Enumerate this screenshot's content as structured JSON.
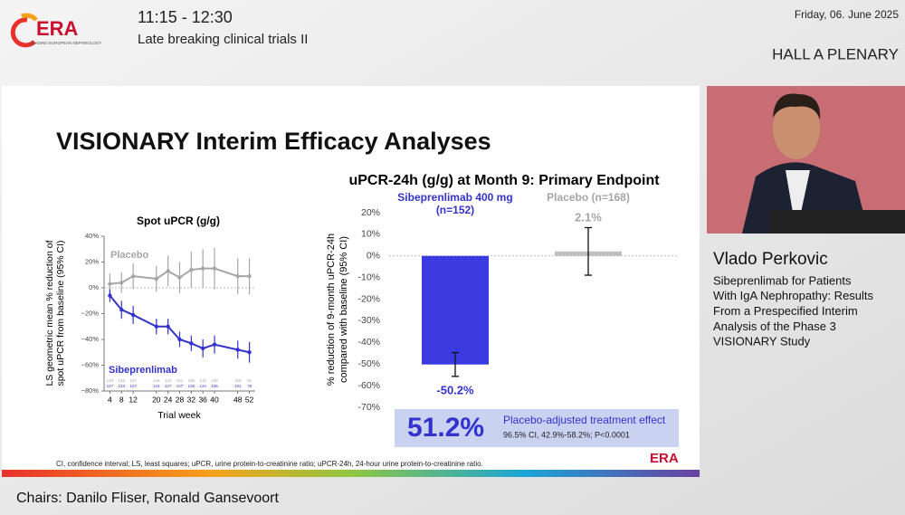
{
  "header": {
    "logo": "ERA",
    "logo_tagline": "LEADING EUROPEAN NEPHROLOGY",
    "time": "11:15 - 12:30",
    "session": "Late breaking clinical trials II",
    "date": "Friday, 06. June 2025",
    "hall": "HALL A PLENARY"
  },
  "speaker": {
    "name": "Vlado Perkovic",
    "talk_title_lines": [
      "Sibeprenlimab for Patients",
      "With IgA Nephropathy: Results",
      "From a Prespecified Interim",
      "Analysis of the Phase 3",
      "VISIONARY Study"
    ]
  },
  "slide": {
    "title": "VISIONARY Interim Efficacy Analyses",
    "footnote": "CI, confidence interval; LS, least squares; uPCR, urine protein-to-creatinine ratio; uPCR-24h, 24-hour urine protein-to-creatinine ratio.",
    "logo": "ERA",
    "effect": {
      "value": "51.2%",
      "label": "Placebo-adjusted treatment effect",
      "ci": "96.5% CI, 42.9%-58.2%; P<0.0001"
    }
  },
  "footer": {
    "chairs": "Chairs: Danilo Fliser, Ronald Gansevoort"
  },
  "chart_data": [
    {
      "type": "line",
      "title": "Spot uPCR (g/g)",
      "xlabel": "Trial week",
      "ylabel": [
        "LS geometric mean % reduction of",
        "spot uPCR from baseline (95% CI)"
      ],
      "x": [
        4,
        8,
        12,
        20,
        24,
        28,
        32,
        36,
        40,
        48,
        52
      ],
      "xlim": [
        2,
        54
      ],
      "xticks": [
        4,
        8,
        12,
        20,
        24,
        28,
        32,
        36,
        40,
        48,
        52
      ],
      "ylim": [
        -80,
        40
      ],
      "yticks": [
        {
          "value": -80,
          "label": "−80%"
        },
        {
          "value": -60,
          "label": "−60%"
        },
        {
          "value": -40,
          "label": "−40%"
        },
        {
          "value": -20,
          "label": "−20%"
        },
        {
          "value": 0,
          "label": "0%"
        },
        {
          "value": 20,
          "label": "20%"
        },
        {
          "value": 40,
          "label": "40%"
        }
      ],
      "series": [
        {
          "name": "Placebo",
          "color": "#a6a6a6",
          "values": [
            3,
            4,
            9,
            7,
            13,
            8,
            14,
            15,
            15,
            9,
            9
          ],
          "errors": [
            8,
            8,
            10,
            10,
            12,
            12,
            14,
            15,
            16,
            14,
            14
          ]
        },
        {
          "name": "Sibeprenlimab",
          "color": "#3333cc",
          "values": [
            -6,
            -17,
            -21,
            -30,
            -30,
            -40,
            -43,
            -47,
            -44,
            -48,
            -50
          ],
          "errors": [
            5,
            7,
            7,
            6,
            6,
            6,
            6,
            7,
            7,
            7,
            8
          ]
        }
      ],
      "at_risk": [
        [
          146,
          145,
          137,
          146,
          144,
          151,
          150,
          142,
          139,
          120,
          91
        ],
        [
          127,
          123,
          127,
          123,
          127,
          127,
          126,
          124,
          106,
          101,
          75
        ]
      ]
    },
    {
      "type": "bar",
      "title": "uPCR-24h (g/g) at Month 9: Primary Endpoint",
      "ylabel": [
        "% reduction of 9-month uPCR-24h",
        "compared with baseline (95% CI)"
      ],
      "categories": [
        "Sibeprenlimab 400 mg (n=152)",
        "Placebo (n=168)"
      ],
      "colors": [
        "#3a3ae0",
        "#bfbfbf"
      ],
      "values": [
        -50.2,
        2.1
      ],
      "value_labels": [
        "-50.2%",
        "2.1%"
      ],
      "errors": [
        5.5,
        11
      ],
      "ylim": [
        -70,
        20
      ],
      "yticks": [
        {
          "value": -70,
          "label": "-70%"
        },
        {
          "value": -60,
          "label": "-60%"
        },
        {
          "value": -50,
          "label": "-50%"
        },
        {
          "value": -40,
          "label": "-40%"
        },
        {
          "value": -30,
          "label": "-30%"
        },
        {
          "value": -20,
          "label": "-20%"
        },
        {
          "value": -10,
          "label": "-10%"
        },
        {
          "value": 0,
          "label": "0%"
        },
        {
          "value": 10,
          "label": "10%"
        },
        {
          "value": 20,
          "label": "20%"
        }
      ]
    }
  ]
}
